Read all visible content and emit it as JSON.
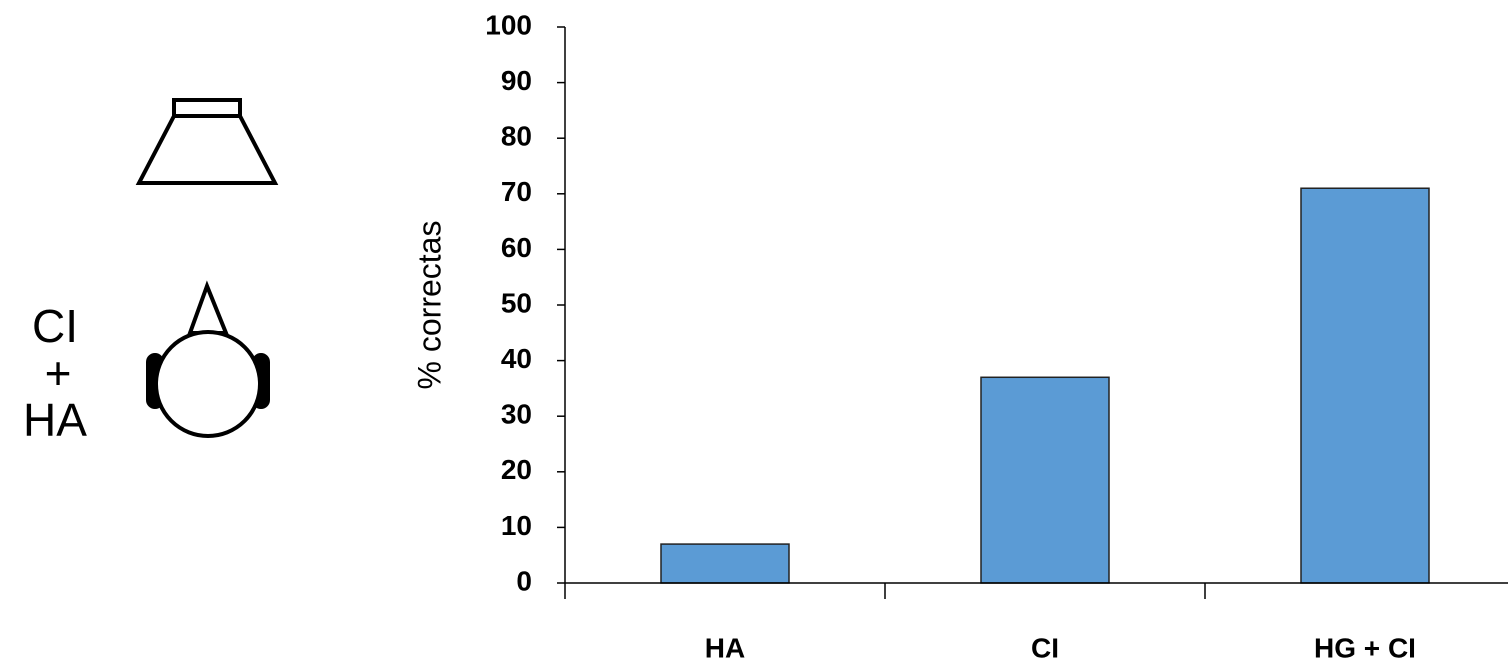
{
  "chart_data": {
    "type": "bar",
    "y_label": "% correctas",
    "categories": [
      "HA",
      "CI",
      "HG + CI"
    ],
    "values": [
      7,
      37,
      71
    ],
    "color": "#5b9bd5",
    "ylim": [
      0,
      100
    ],
    "yticks": [
      0,
      10,
      20,
      30,
      40,
      50,
      60,
      70,
      80,
      90,
      100
    ],
    "grid": false,
    "side_labels": [
      "CI",
      "+",
      "HA"
    ]
  }
}
